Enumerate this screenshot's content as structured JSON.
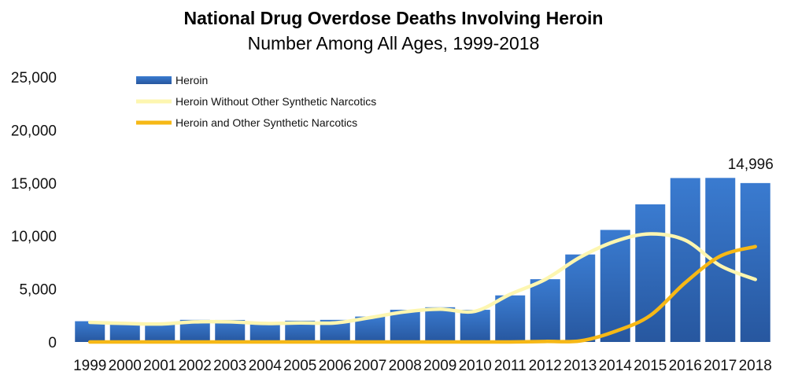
{
  "chart_data": {
    "type": "bar",
    "title": "National Drug Overdose Deaths Involving Heroin",
    "subtitle": "Number Among All Ages, 1999-2018",
    "xlabel": "",
    "ylabel": "",
    "ylim": [
      0,
      25000
    ],
    "yticks": [
      "0",
      "5,000",
      "10,000",
      "15,000",
      "20,000",
      "25,000"
    ],
    "grid": false,
    "legend_position": "top-left",
    "categories": [
      "1999",
      "2000",
      "2001",
      "2002",
      "2003",
      "2004",
      "2005",
      "2006",
      "2007",
      "2008",
      "2009",
      "2010",
      "2011",
      "2012",
      "2013",
      "2014",
      "2015",
      "2016",
      "2017",
      "2018"
    ],
    "series": [
      {
        "name": "Heroin",
        "type": "bar",
        "color": "#2f6ebd",
        "values": [
          1960,
          1842,
          1779,
          2089,
          2080,
          1878,
          2009,
          2088,
          2399,
          3041,
          3278,
          3036,
          4397,
          5925,
          8257,
          10574,
          12989,
          15469,
          15482,
          14996
        ]
      },
      {
        "name": "Heroin Without Other Synthetic Narcotics",
        "type": "line",
        "color": "#fdf6b0",
        "values": [
          1850,
          1750,
          1700,
          1900,
          1900,
          1750,
          1800,
          1800,
          2300,
          2850,
          3100,
          2900,
          4500,
          5900,
          8000,
          9500,
          10200,
          9600,
          7200,
          5900
        ]
      },
      {
        "name": "Heroin and Other Synthetic Narcotics",
        "type": "line",
        "color": "#f6b816",
        "values": [
          0,
          0,
          0,
          0,
          0,
          0,
          0,
          0,
          0,
          0,
          0,
          0,
          0,
          50,
          100,
          1000,
          2500,
          5600,
          8100,
          9000
        ]
      }
    ],
    "annotations": [
      {
        "category": "2018",
        "text": "14,996"
      }
    ]
  }
}
